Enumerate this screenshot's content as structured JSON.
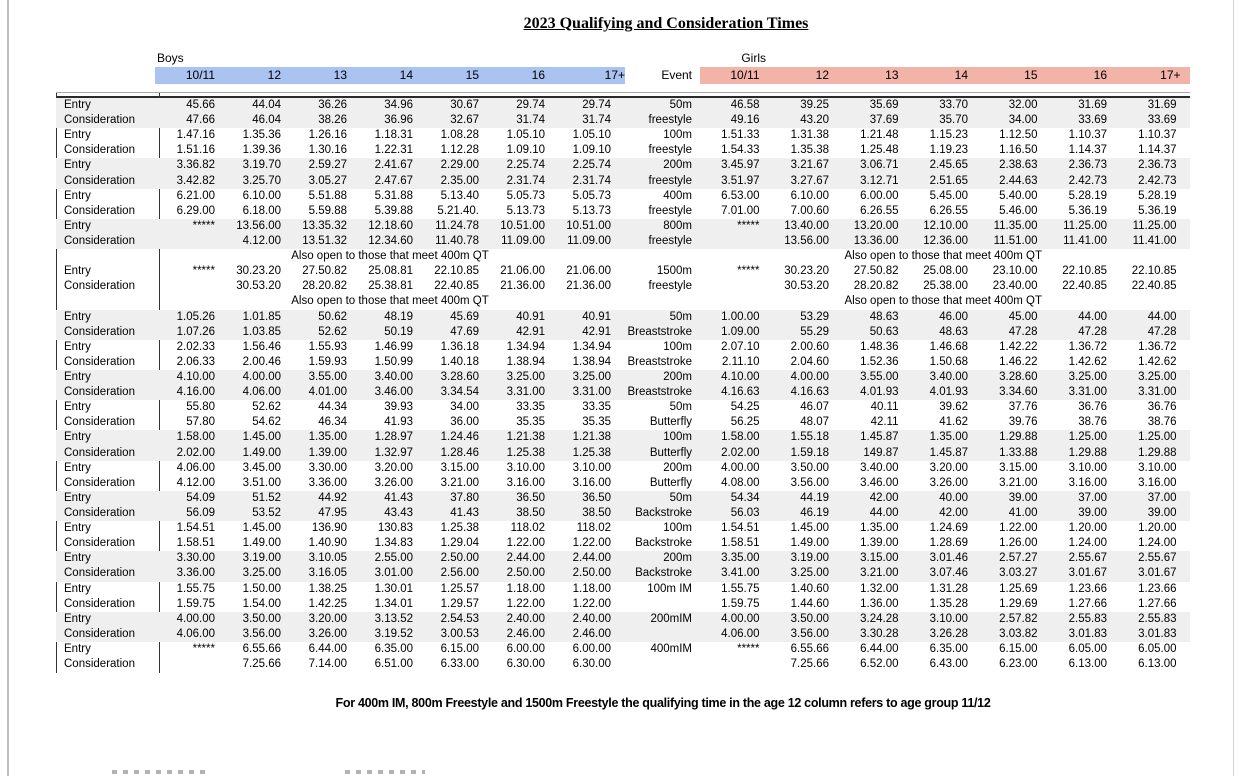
{
  "page": {
    "title": "2023 Qualifying and Consideration Times",
    "footer_note": "For 400m IM, 800m Freestyle and 1500m Freestyle the qualifying time in the age 12 column refers to age group 11/12"
  },
  "header": {
    "boys_label": "Boys",
    "girls_label": "Girls",
    "event_label": "Event",
    "age_columns": [
      "10/11",
      "12",
      "13",
      "14",
      "15",
      "16",
      "17+"
    ]
  },
  "row_labels": {
    "entry": "Entry",
    "consideration": "Consideration"
  },
  "also_open_note": "Also open to those that meet 400m QT",
  "colors": {
    "boys_header_band": "#aac3f0",
    "girls_header_band": "#f2b3a8",
    "shaded_row": "#efefef"
  },
  "events": [
    {
      "event": "50m",
      "stroke": "freestyle",
      "shaded": true,
      "note_after": false,
      "boys": {
        "entry": [
          "45.66",
          "44.04",
          "36.26",
          "34.96",
          "30.67",
          "29.74",
          "29.74"
        ],
        "consideration": [
          "47.66",
          "46.04",
          "38.26",
          "36.96",
          "32.67",
          "31.74",
          "31.74"
        ]
      },
      "girls": {
        "entry": [
          "46.58",
          "39.25",
          "35.69",
          "33.70",
          "32.00",
          "31.69",
          "31.69"
        ],
        "consideration": [
          "49.16",
          "43.20",
          "37.69",
          "35.70",
          "34.00",
          "33.69",
          "33.69"
        ]
      }
    },
    {
      "event": "100m",
      "stroke": "freestyle",
      "shaded": false,
      "note_after": false,
      "boys": {
        "entry": [
          "1.47.16",
          "1.35.36",
          "1.26.16",
          "1.18.31",
          "1.08.28",
          "1.05.10",
          "1.05.10"
        ],
        "consideration": [
          "1.51.16",
          "1.39.36",
          "1.30.16",
          "1.22.31",
          "1.12.28",
          "1.09.10",
          "1.09.10"
        ]
      },
      "girls": {
        "entry": [
          "1.51.33",
          "1.31.38",
          "1.21.48",
          "1.15.23",
          "1.12.50",
          "1.10.37",
          "1.10.37"
        ],
        "consideration": [
          "1.54.33",
          "1.35.38",
          "1.25.48",
          "1.19.23",
          "1.16.50",
          "1.14.37",
          "1.14.37"
        ]
      }
    },
    {
      "event": "200m",
      "stroke": "freestyle",
      "shaded": true,
      "note_after": false,
      "boys": {
        "entry": [
          "3.36.82",
          "3.19.70",
          "2.59.27",
          "2.41.67",
          "2.29.00",
          "2.25.74",
          "2.25.74"
        ],
        "consideration": [
          "3.42.82",
          "3.25.70",
          "3.05.27",
          "2.47.67",
          "2.35.00",
          "2.31.74",
          "2.31.74"
        ]
      },
      "girls": {
        "entry": [
          "3.45.97",
          "3.21.67",
          "3.06.71",
          "2.45.65",
          "2.38.63",
          "2.36.73",
          "2.36.73"
        ],
        "consideration": [
          "3.51.97",
          "3.27.67",
          "3.12.71",
          "2.51.65",
          "2.44.63",
          "2.42.73",
          "2.42.73"
        ]
      }
    },
    {
      "event": "400m",
      "stroke": "freestyle",
      "shaded": false,
      "note_after": false,
      "boys": {
        "entry": [
          "6.21.00",
          "6.10.00",
          "5.51.88",
          "5.31.88",
          "5.13.40",
          "5.05.73",
          "5.05.73"
        ],
        "consideration": [
          "6.29.00",
          "6.18.00",
          "5.59.88",
          "5.39.88",
          "5.21.40.",
          "5.13.73",
          "5.13.73"
        ]
      },
      "girls": {
        "entry": [
          "6.53.00",
          "6.10.00",
          "6.00.00",
          "5.45.00",
          "5.40.00",
          "5.28.19",
          "5.28.19"
        ],
        "consideration": [
          "7.01.00",
          "7.00.60",
          "6.26.55",
          "6.26.55",
          "5.46.00",
          "5.36.19",
          "5.36.19"
        ]
      }
    },
    {
      "event": "800m",
      "stroke": "freestyle",
      "shaded": true,
      "note_after": true,
      "boys": {
        "entry": [
          "*****",
          "13.56.00",
          "13.35.32",
          "12.18.60",
          "11.24.78",
          "10.51.00",
          "10.51.00"
        ],
        "consideration": [
          "",
          "4.12.00",
          "13.51.32",
          "12.34.60",
          "11.40.78",
          "11.09.00",
          "11.09.00"
        ]
      },
      "girls": {
        "entry": [
          "*****",
          "13.40.00",
          "13.20.00",
          "12.10.00",
          "11.35.00",
          "11.25.00",
          "11.25.00"
        ],
        "consideration": [
          "",
          "13.56.00",
          "13.36.00",
          "12.36.00",
          "11.51.00",
          "11.41.00",
          "11.41.00"
        ]
      }
    },
    {
      "event": "1500m",
      "stroke": "freestyle",
      "shaded": false,
      "note_after": true,
      "boys": {
        "entry": [
          "*****",
          "30.23.20",
          "27.50.82",
          "25.08.81",
          "22.10.85",
          "21.06.00",
          "21.06.00"
        ],
        "consideration": [
          "",
          "30.53.20",
          "28.20.82",
          "25.38.81",
          "22.40.85",
          "21.36.00",
          "21.36.00"
        ]
      },
      "girls": {
        "entry": [
          "*****",
          "30.23.20",
          "27.50.82",
          "25.08.00",
          "23.10.00",
          "22.10.85",
          "22.10.85"
        ],
        "consideration": [
          "",
          "30.53.20",
          "28.20.82",
          "25.38.00",
          "23.40.00",
          "22.40.85",
          "22.40.85"
        ]
      }
    },
    {
      "event": "50m",
      "stroke": "Breaststroke",
      "shaded": true,
      "note_after": false,
      "boys": {
        "entry": [
          "1.05.26",
          "1.01.85",
          "50.62",
          "48.19",
          "45.69",
          "40.91",
          "40.91"
        ],
        "consideration": [
          "1.07.26",
          "1.03.85",
          "52.62",
          "50.19",
          "47.69",
          "42.91",
          "42.91"
        ]
      },
      "girls": {
        "entry": [
          "1.00.00",
          "53.29",
          "48.63",
          "46.00",
          "45.00",
          "44.00",
          "44.00"
        ],
        "consideration": [
          "1.09.00",
          "55.29",
          "50.63",
          "48.63",
          "47.28",
          "47.28",
          "47.28"
        ]
      }
    },
    {
      "event": "100m",
      "stroke": "Breaststroke",
      "shaded": false,
      "note_after": false,
      "boys": {
        "entry": [
          "2.02.33",
          "1.56.46",
          "1.55.93",
          "1.46.99",
          "1.36.18",
          "1.34.94",
          "1.34.94"
        ],
        "consideration": [
          "2.06.33",
          "2.00.46",
          "1.59.93",
          "1.50.99",
          "1.40.18",
          "1.38.94",
          "1.38.94"
        ]
      },
      "girls": {
        "entry": [
          "2.07.10",
          "2.00.60",
          "1.48.36",
          "1.46.68",
          "1.42.22",
          "1.36.72",
          "1.36.72"
        ],
        "consideration": [
          "2.11.10",
          "2.04.60",
          "1.52.36",
          "1.50.68",
          "1.46.22",
          "1.42.62",
          "1.42.62"
        ]
      }
    },
    {
      "event": "200m",
      "stroke": "Breaststroke",
      "shaded": true,
      "note_after": false,
      "boys": {
        "entry": [
          "4.10.00",
          "4.00.00",
          "3.55.00",
          "3.40.00",
          "3.28.60",
          "3.25.00",
          "3.25.00"
        ],
        "consideration": [
          "4.16.00",
          "4.06.00",
          "4.01.00",
          "3.46.00",
          "3.34.54",
          "3.31.00",
          "3.31.00"
        ]
      },
      "girls": {
        "entry": [
          "4.10.00",
          "4.00.00",
          "3.55.00",
          "3.40.00",
          "3.28.60",
          "3.25.00",
          "3.25.00"
        ],
        "consideration": [
          "4.16.63",
          "4.16.63",
          "4.01.93",
          "4.01.93",
          "3.34.60",
          "3.31.00",
          "3.31.00"
        ]
      }
    },
    {
      "event": "50m",
      "stroke": "Butterfly",
      "shaded": false,
      "note_after": false,
      "boys": {
        "entry": [
          "55.80",
          "52.62",
          "44.34",
          "39.93",
          "34.00",
          "33.35",
          "33.35"
        ],
        "consideration": [
          "57.80",
          "54.62",
          "46.34",
          "41.93",
          "36.00",
          "35.35",
          "35.35"
        ]
      },
      "girls": {
        "entry": [
          "54.25",
          "46.07",
          "40.11",
          "39.62",
          "37.76",
          "36.76",
          "36.76"
        ],
        "consideration": [
          "56.25",
          "48.07",
          "42.11",
          "41.62",
          "39.76",
          "38.76",
          "38.76"
        ]
      }
    },
    {
      "event": "100m",
      "stroke": "Butterfly",
      "shaded": true,
      "note_after": false,
      "boys": {
        "entry": [
          "1.58.00",
          "1.45.00",
          "1.35.00",
          "1.28.97",
          "1.24.46",
          "1.21.38",
          "1.21.38"
        ],
        "consideration": [
          "2.02.00",
          "1.49.00",
          "1.39.00",
          "1.32.97",
          "1.28.46",
          "1.25.38",
          "1.25.38"
        ]
      },
      "girls": {
        "entry": [
          "1.58.00",
          "1.55.18",
          "1.45.87",
          "1.35.00",
          "1.29.88",
          "1.25.00",
          "1.25.00"
        ],
        "consideration": [
          "2.02.00",
          "1.59.18",
          "149.87",
          "1.45.87",
          "1.33.88",
          "1.29.88",
          "1.29.88"
        ]
      }
    },
    {
      "event": "200m",
      "stroke": "Butterfly",
      "shaded": false,
      "note_after": false,
      "boys": {
        "entry": [
          "4.06.00",
          "3.45.00",
          "3.30.00",
          "3.20.00",
          "3.15.00",
          "3.10.00",
          "3.10.00"
        ],
        "consideration": [
          "4.12.00",
          "3.51.00",
          "3.36.00",
          "3.26.00",
          "3.21.00",
          "3.16.00",
          "3.16.00"
        ]
      },
      "girls": {
        "entry": [
          "4.00.00",
          "3.50.00",
          "3.40.00",
          "3.20.00",
          "3.15.00",
          "3.10.00",
          "3.10.00"
        ],
        "consideration": [
          "4.08.00",
          "3.56.00",
          "3.46.00",
          "3.26.00",
          "3.21.00",
          "3.16.00",
          "3.16.00"
        ]
      }
    },
    {
      "event": "50m",
      "stroke": "Backstroke",
      "shaded": true,
      "note_after": false,
      "boys": {
        "entry": [
          "54.09",
          "51.52",
          "44.92",
          "41.43",
          "37.80",
          "36.50",
          "36.50"
        ],
        "consideration": [
          "56.09",
          "53.52",
          "47.95",
          "43.43",
          "41.43",
          "38.50",
          "38.50"
        ]
      },
      "girls": {
        "entry": [
          "54.34",
          "44.19",
          "42.00",
          "40.00",
          "39.00",
          "37.00",
          "37.00"
        ],
        "consideration": [
          "56.03",
          "46.19",
          "44.00",
          "42.00",
          "41.00",
          "39.00",
          "39.00"
        ]
      }
    },
    {
      "event": "100m",
      "stroke": "Backstroke",
      "shaded": false,
      "note_after": false,
      "boys": {
        "entry": [
          "1.54.51",
          "1.45.00",
          "136.90",
          "130.83",
          "1.25.38",
          "118.02",
          "118.02"
        ],
        "consideration": [
          "1.58.51",
          "1.49.00",
          "1.40.90",
          "1.34.83",
          "1.29.04",
          "1.22.00",
          "1.22.00"
        ]
      },
      "girls": {
        "entry": [
          "1.54.51",
          "1.45.00",
          "1.35.00",
          "1.24.69",
          "1.22.00",
          "1.20.00",
          "1.20.00"
        ],
        "consideration": [
          "1.58.51",
          "1.49.00",
          "1.39.00",
          "1.28.69",
          "1.26.00",
          "1.24.00",
          "1.24.00"
        ]
      }
    },
    {
      "event": "200m",
      "stroke": "Backstroke",
      "shaded": true,
      "note_after": false,
      "boys": {
        "entry": [
          "3.30.00",
          "3.19.00",
          "3.10.05",
          "2.55.00",
          "2.50.00",
          "2.44.00",
          "2.44.00"
        ],
        "consideration": [
          "3.36.00",
          "3.25.00",
          "3.16.05",
          "3.01.00",
          "2.56.00",
          "2.50.00",
          "2.50.00"
        ]
      },
      "girls": {
        "entry": [
          "3.35.00",
          "3.19.00",
          "3.15.00",
          "3.01.46",
          "2.57.27",
          "2.55.67",
          "2.55.67"
        ],
        "consideration": [
          "3.41.00",
          "3.25.00",
          "3.21.00",
          "3.07.46",
          "3.03.27",
          "3.01.67",
          "3.01.67"
        ]
      }
    },
    {
      "event": "100m IM",
      "stroke": "",
      "shaded": false,
      "note_after": false,
      "boys": {
        "entry": [
          "1.55.75",
          "1.50.00",
          "1.38.25",
          "1.30.01",
          "1.25.57",
          "1.18.00",
          "1.18.00"
        ],
        "consideration": [
          "1.59.75",
          "1.54.00",
          "1.42.25",
          "1.34.01",
          "1.29.57",
          "1.22.00",
          "1.22.00"
        ]
      },
      "girls": {
        "entry": [
          "1.55.75",
          "1.40.60",
          "1.32.00",
          "1.31.28",
          "1.25.69",
          "1.23.66",
          "1.23.66"
        ],
        "consideration": [
          "1.59.75",
          "1.44.60",
          "1.36.00",
          "1.35.28",
          "1.29.69",
          "1.27.66",
          "1.27.66"
        ]
      }
    },
    {
      "event": "200mIM",
      "stroke": "",
      "shaded": true,
      "note_after": false,
      "boys": {
        "entry": [
          "4.00.00",
          "3.50.00",
          "3.20.00",
          "3.13.52",
          "2.54.53",
          "2.40.00",
          "2.40.00"
        ],
        "consideration": [
          "4.06.00",
          "3.56.00",
          "3.26.00",
          "3.19.52",
          "3.00.53",
          "2.46.00",
          "2.46.00"
        ]
      },
      "girls": {
        "entry": [
          "4.00.00",
          "3.50.00",
          "3.24.28",
          "3.10.00",
          "2.57.82",
          "2.55.83",
          "2.55.83"
        ],
        "consideration": [
          "4.06.00",
          "3.56.00",
          "3.30.28",
          "3.26.28",
          "3.03.82",
          "3.01.83",
          "3.01.83"
        ]
      }
    },
    {
      "event": "400mIM",
      "stroke": "",
      "shaded": false,
      "note_after": false,
      "boys": {
        "entry": [
          "*****",
          "6.55.66",
          "6.44.00",
          "6.35.00",
          "6.15.00",
          "6.00.00",
          "6.00.00"
        ],
        "consideration": [
          "",
          "7.25.66",
          "7.14.00",
          "6.51.00",
          "6.33.00",
          "6.30.00",
          "6.30.00"
        ]
      },
      "girls": {
        "entry": [
          "*****",
          "6.55.66",
          "6.44.00",
          "6.35.00",
          "6.15.00",
          "6.05.00",
          "6.05.00"
        ],
        "consideration": [
          "",
          "7.25.66",
          "6.52.00",
          "6.43.00",
          "6.23.00",
          "6.13.00",
          "6.13.00"
        ]
      }
    }
  ]
}
